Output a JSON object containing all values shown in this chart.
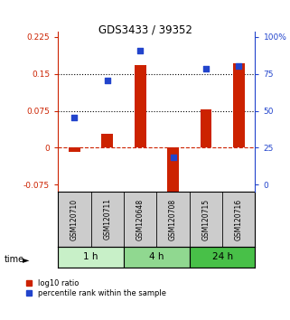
{
  "title": "GDS3433 / 39352",
  "samples": [
    "GSM120710",
    "GSM120711",
    "GSM120648",
    "GSM120708",
    "GSM120715",
    "GSM120716"
  ],
  "log10_ratio": [
    -0.008,
    0.028,
    0.168,
    -0.092,
    0.078,
    0.172
  ],
  "percentile_rank": [
    0.44,
    0.68,
    0.88,
    0.18,
    0.76,
    0.78
  ],
  "time_groups": [
    {
      "label": "1 h",
      "start": 0,
      "end": 2,
      "color": "#c8f0c8"
    },
    {
      "label": "4 h",
      "start": 2,
      "end": 4,
      "color": "#90d890"
    },
    {
      "label": "24 h",
      "start": 4,
      "end": 6,
      "color": "#48c048"
    }
  ],
  "left_ylim": [
    -0.09,
    0.235
  ],
  "left_yticks": [
    -0.075,
    0,
    0.075,
    0.15,
    0.225
  ],
  "left_yticklabels": [
    "-0.075",
    "0",
    "0.075",
    "0.15",
    "0.225"
  ],
  "right_ytick_positions": [
    -0.075,
    0,
    0.075,
    0.15,
    0.225
  ],
  "right_yticklabels": [
    "0",
    "25",
    "50",
    "75",
    "100%"
  ],
  "hlines": [
    0.075,
    0.15
  ],
  "bar_color": "#cc2200",
  "dot_color": "#2244cc",
  "bar_width": 0.35,
  "dot_size": 20,
  "zero_line_color": "#cc2200",
  "hline_color": "black",
  "bg_color": "#ffffff",
  "plot_bg_color": "#ffffff",
  "sample_box_color": "#cccccc",
  "left_tick_color": "#cc2200",
  "right_tick_color": "#2244cc",
  "legend_red_label": "log10 ratio",
  "legend_blue_label": "percentile rank within the sample"
}
